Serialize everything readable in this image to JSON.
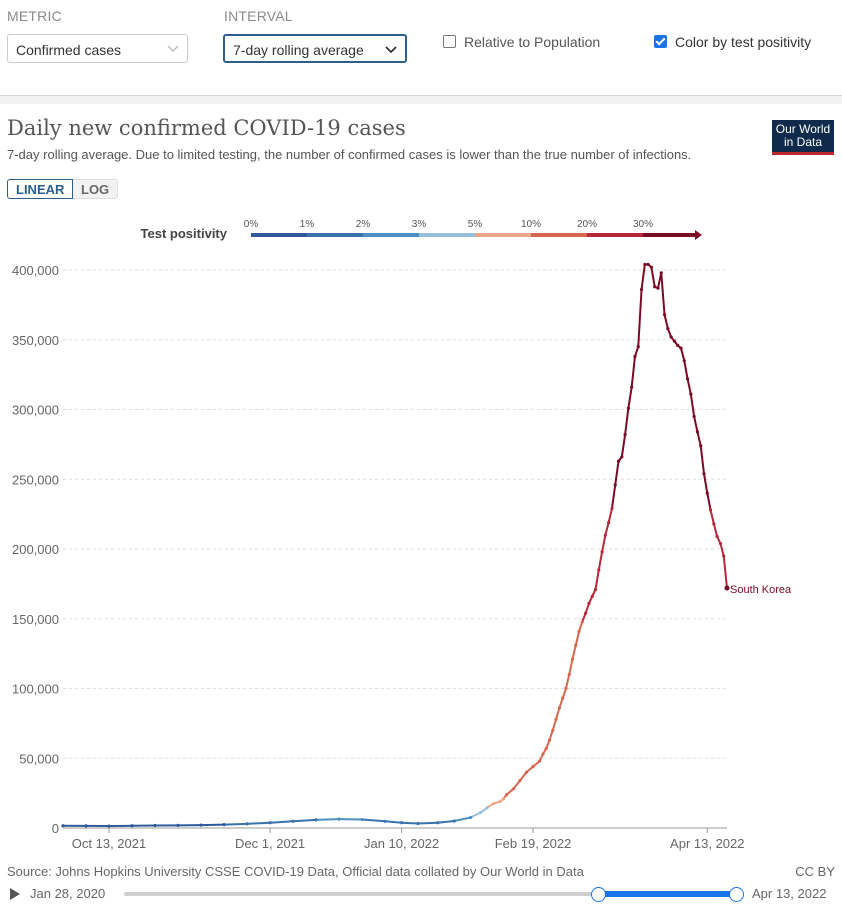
{
  "controls": {
    "metric_label": "METRIC",
    "metric_value": "Confirmed cases",
    "interval_label": "INTERVAL",
    "interval_value": "7-day rolling average",
    "relative_label": "Relative to Population",
    "relative_checked": false,
    "positivity_label": "Color by test positivity",
    "positivity_checked": true
  },
  "header": {
    "title": "Daily new confirmed COVID-19 cases",
    "subtitle": "7-day rolling average. Due to limited testing, the number of confirmed cases is lower than the true number of infections.",
    "logo_line1": "Our World",
    "logo_line2": "in Data"
  },
  "scale_toggle": {
    "linear": "LINEAR",
    "log": "LOG"
  },
  "chart_data": {
    "type": "line",
    "title": "Daily new confirmed COVID-19 cases",
    "ylabel": "",
    "ylim": [
      0,
      400000
    ],
    "y_ticks": [
      0,
      50000,
      100000,
      150000,
      200000,
      250000,
      300000,
      350000,
      400000
    ],
    "y_tick_labels": [
      "0",
      "50,000",
      "100,000",
      "150,000",
      "200,000",
      "250,000",
      "300,000",
      "350,000",
      "400,000"
    ],
    "x_ticks": [
      14,
      63,
      103,
      143,
      196
    ],
    "x_tick_labels": [
      "Oct 13, 2021",
      "Dec 1, 2021",
      "Jan 10, 2022",
      "Feb 19, 2022",
      "Apr 13, 2022"
    ],
    "xlim": [
      0,
      196
    ],
    "series_label": "South Korea",
    "positivity_legend": {
      "title": "Test positivity",
      "stops": [
        "0%",
        "1%",
        "2%",
        "3%",
        "5%",
        "10%",
        "20%",
        "30%"
      ],
      "colors": [
        "#2e5a9c",
        "#3a72ad",
        "#4d8fc0",
        "#93bfd8",
        "#eba888",
        "#d5674f",
        "#b5283a",
        "#7a0b24"
      ]
    },
    "series": [
      {
        "name": "South Korea",
        "points": [
          [
            0,
            1600
          ],
          [
            7,
            1500
          ],
          [
            14,
            1400
          ],
          [
            21,
            1600
          ],
          [
            28,
            1800
          ],
          [
            35,
            1900
          ],
          [
            42,
            2100
          ],
          [
            49,
            2400
          ],
          [
            56,
            3000
          ],
          [
            63,
            3800
          ],
          [
            70,
            4800
          ],
          [
            77,
            5800
          ],
          [
            84,
            6400
          ],
          [
            91,
            6100
          ],
          [
            98,
            4800
          ],
          [
            103,
            3800
          ],
          [
            108,
            3200
          ],
          [
            114,
            3800
          ],
          [
            119,
            5000
          ],
          [
            124,
            7500
          ],
          [
            127,
            11000
          ],
          [
            129,
            14500
          ],
          [
            131,
            17500
          ],
          [
            133,
            19000
          ],
          [
            134,
            21000
          ],
          [
            135,
            24000
          ],
          [
            137,
            28000
          ],
          [
            139,
            34000
          ],
          [
            141,
            40000
          ],
          [
            143,
            44000
          ],
          [
            145,
            48000
          ],
          [
            146,
            53000
          ],
          [
            147,
            57000
          ],
          [
            148,
            63000
          ],
          [
            149,
            70000
          ],
          [
            150,
            78000
          ],
          [
            151,
            86000
          ],
          [
            152,
            93000
          ],
          [
            153,
            100000
          ],
          [
            154,
            110000
          ],
          [
            155,
            121000
          ],
          [
            156,
            131000
          ],
          [
            157,
            141000
          ],
          [
            158,
            148000
          ],
          [
            159,
            154000
          ],
          [
            160,
            161000
          ],
          [
            161,
            166000
          ],
          [
            162,
            171000
          ],
          [
            163,
            185000
          ],
          [
            164,
            198000
          ],
          [
            165,
            210000
          ],
          [
            166,
            219000
          ],
          [
            167,
            229000
          ],
          [
            168,
            246000
          ],
          [
            169,
            263000
          ],
          [
            170,
            266000
          ],
          [
            171,
            282000
          ],
          [
            172,
            301000
          ],
          [
            173,
            316000
          ],
          [
            174,
            338000
          ],
          [
            175,
            345000
          ],
          [
            176,
            386000
          ],
          [
            177,
            404000
          ],
          [
            178,
            404000
          ],
          [
            179,
            402000
          ],
          [
            180,
            388000
          ],
          [
            181,
            387000
          ],
          [
            182,
            398000
          ],
          [
            183,
            368000
          ],
          [
            184,
            358000
          ],
          [
            185,
            352000
          ],
          [
            186,
            349000
          ],
          [
            187,
            346000
          ],
          [
            188,
            344000
          ],
          [
            189,
            335000
          ],
          [
            190,
            322000
          ],
          [
            191,
            311000
          ],
          [
            192,
            295000
          ],
          [
            193,
            284000
          ],
          [
            194,
            274000
          ],
          [
            195,
            254000
          ],
          [
            196,
            240000
          ],
          [
            197,
            228000
          ],
          [
            198,
            218000
          ],
          [
            199,
            209000
          ],
          [
            200,
            204000
          ],
          [
            201,
            195000
          ],
          [
            202,
            172000
          ]
        ]
      }
    ]
  },
  "footer": {
    "source": "Source: Johns Hopkins University CSSE COVID-19 Data, Official data collated by Our World in Data",
    "license": "CC BY",
    "timeline_start": "Jan 28, 2020",
    "timeline_end": "Apr 13, 2022"
  }
}
